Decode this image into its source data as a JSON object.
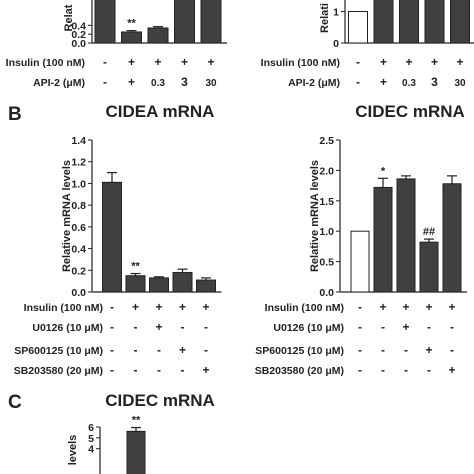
{
  "colors": {
    "ink": "#222222",
    "bar": "#404040",
    "ctrl_bar": "#ffffff"
  },
  "panels": {
    "A": {
      "label": ""
    },
    "B": {
      "label": "B"
    },
    "C": {
      "label": "C"
    }
  },
  "chart_data": [
    {
      "id": "A-left",
      "type": "bar",
      "title": "",
      "ylabel": "Relat",
      "ylim": [
        0,
        1.2
      ],
      "yticks": [
        "0.0",
        "0.2",
        "0.4"
      ],
      "values": [
        1.0,
        0.25,
        0.34,
        1.0,
        1.0
      ],
      "errors": [
        0,
        0.03,
        0.03,
        0,
        0
      ],
      "annotations": [
        "",
        "**",
        "",
        "",
        ""
      ],
      "bar_fill": [
        "black",
        "black",
        "black",
        "black",
        "black"
      ],
      "conditions": [
        {
          "label": "Insulin (100 nM)",
          "marks": [
            "-",
            "+",
            "+",
            "+",
            "+"
          ]
        },
        {
          "label": "API-2 (μM)",
          "marks": [
            "-",
            "+",
            "0.3",
            "3",
            "30"
          ]
        }
      ]
    },
    {
      "id": "A-right",
      "type": "bar",
      "title": "",
      "ylabel": "Relati",
      "ylim": [
        0,
        2
      ],
      "yticks": [
        "0",
        "1"
      ],
      "values": [
        1.0,
        1.9,
        1.9,
        1.9,
        1.9
      ],
      "errors": [
        0,
        0,
        0,
        0,
        0
      ],
      "annotations": [
        "",
        "",
        "",
        "",
        ""
      ],
      "bar_fill": [
        "white",
        "black",
        "black",
        "black",
        "black"
      ],
      "conditions": [
        {
          "label": "Insulin (100 nM)",
          "marks": [
            "-",
            "+",
            "+",
            "+",
            "+"
          ]
        },
        {
          "label": "API-2 (μM)",
          "marks": [
            "-",
            "+",
            "0.3",
            "3",
            "30"
          ]
        }
      ]
    },
    {
      "id": "B-left",
      "type": "bar",
      "title": "CIDEA mRNA",
      "ylabel": "Relative mRNA levels",
      "ylim": [
        0,
        1.4
      ],
      "yticks": [
        "0.0",
        "0.2",
        "0.4",
        "0.6",
        "0.8",
        "1.0",
        "1.2",
        "1.4"
      ],
      "values": [
        1.01,
        0.15,
        0.13,
        0.18,
        0.11
      ],
      "errors": [
        0.09,
        0.02,
        0.01,
        0.03,
        0.02
      ],
      "annotations": [
        "",
        "**",
        "",
        "",
        ""
      ],
      "bar_fill": [
        "black",
        "black",
        "black",
        "black",
        "black"
      ],
      "conditions": [
        {
          "label": "Insulin (100 nM)",
          "marks": [
            "-",
            "+",
            "+",
            "+",
            "+"
          ]
        },
        {
          "label": "U0126 (10 μM)",
          "marks": [
            "-",
            "-",
            "+",
            "-",
            "-"
          ]
        },
        {
          "label": "SP600125 (10 μM)",
          "marks": [
            "-",
            "-",
            "-",
            "+",
            "-"
          ]
        },
        {
          "label": "SB203580 (20 μM)",
          "marks": [
            "-",
            "-",
            "-",
            "-",
            "+"
          ]
        }
      ]
    },
    {
      "id": "B-right",
      "type": "bar",
      "title": "CIDEC mRNA",
      "ylabel": "Relative mRNA levels",
      "ylim": [
        0,
        2.5
      ],
      "yticks": [
        "0.0",
        "0.5",
        "1.0",
        "1.5",
        "2.0",
        "2.5"
      ],
      "values": [
        1.0,
        1.72,
        1.86,
        0.82,
        1.78
      ],
      "errors": [
        0,
        0.15,
        0.05,
        0.05,
        0.13
      ],
      "annotations": [
        "",
        "*",
        "",
        "##",
        ""
      ],
      "bar_fill": [
        "white",
        "black",
        "black",
        "black",
        "black"
      ],
      "conditions": [
        {
          "label": "Insulin (100 nM)",
          "marks": [
            "-",
            "+",
            "+",
            "+",
            "+"
          ]
        },
        {
          "label": "U0126 (10 μM)",
          "marks": [
            "-",
            "-",
            "+",
            "-",
            "-"
          ]
        },
        {
          "label": "SP600125 (10 μM)",
          "marks": [
            "-",
            "-",
            "-",
            "+",
            "-"
          ]
        },
        {
          "label": "SB203580 (20 μM)",
          "marks": [
            "-",
            "-",
            "-",
            "-",
            "+"
          ]
        }
      ]
    },
    {
      "id": "C",
      "type": "bar",
      "title": "CIDEC mRNA",
      "ylabel": "levels",
      "ylim": [
        0,
        6
      ],
      "yticks": [
        "4",
        "5",
        "6"
      ],
      "values": [
        0,
        5.6
      ],
      "errors": [
        0,
        0.35
      ],
      "annotations": [
        "",
        "**"
      ],
      "bar_fill": [
        "white",
        "black"
      ],
      "conditions": []
    }
  ]
}
